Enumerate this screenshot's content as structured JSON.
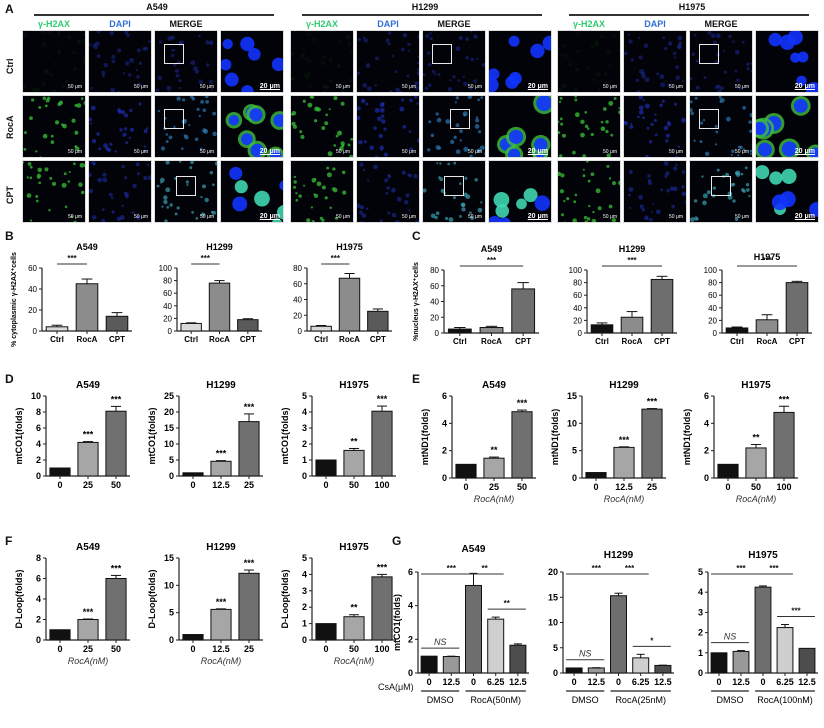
{
  "panel_letters": {
    "A": "A",
    "B": "B",
    "C": "C",
    "D": "D",
    "E": "E",
    "F": "F",
    "G": "G"
  },
  "panelA": {
    "cell_lines": [
      "A549",
      "H1299",
      "H1975"
    ],
    "channels": [
      "γ-H2AX",
      "DAPI",
      "MERGE"
    ],
    "channel_colors": [
      "#2ecc71",
      "#2f6fd6",
      "#111111"
    ],
    "rows": [
      "Ctrl",
      "RocA",
      "CPT"
    ],
    "scale_small": "50 μm",
    "scale_big": "20 μm"
  },
  "chart_data": [
    {
      "id": "B-A549",
      "type": "bar",
      "title": "A549",
      "ylabel": "% cytoplasmic γ-H2AX⁺cells",
      "categories": [
        "Ctrl",
        "RocA",
        "CPT"
      ],
      "values": [
        4,
        45,
        14
      ],
      "errors": [
        1.5,
        4.5,
        3.5
      ],
      "ylim": [
        0,
        60
      ],
      "yticks": [
        0,
        20,
        40,
        60
      ],
      "colors": [
        "#d9d9d9",
        "#8c8c8c",
        "#5a5a5a"
      ],
      "sig": [
        {
          "from": 0,
          "to": 1,
          "label": "***"
        }
      ]
    },
    {
      "id": "B-H1299",
      "type": "bar",
      "title": "H1299",
      "ylabel": "",
      "categories": [
        "Ctrl",
        "RocA",
        "CPT"
      ],
      "values": [
        12,
        76,
        18
      ],
      "errors": [
        1,
        4,
        1.5
      ],
      "ylim": [
        0,
        100
      ],
      "yticks": [
        0,
        20,
        40,
        60,
        80,
        100
      ],
      "colors": [
        "#d9d9d9",
        "#8c8c8c",
        "#5a5a5a"
      ],
      "sig": [
        {
          "from": 0,
          "to": 1,
          "label": "***"
        }
      ]
    },
    {
      "id": "B-H1975",
      "type": "bar",
      "title": "H1975",
      "ylabel": "",
      "categories": [
        "Ctrl",
        "RocA",
        "CPT"
      ],
      "values": [
        6,
        67,
        25
      ],
      "errors": [
        1,
        6,
        3
      ],
      "ylim": [
        0,
        80
      ],
      "yticks": [
        0,
        20,
        40,
        60,
        80
      ],
      "colors": [
        "#d9d9d9",
        "#8c8c8c",
        "#5a5a5a"
      ],
      "sig": [
        {
          "from": 0,
          "to": 1,
          "label": "***"
        }
      ]
    },
    {
      "id": "C-A549",
      "type": "bar",
      "title": "A549",
      "ylabel": "%nucleus γ-H2AX⁺cells",
      "categories": [
        "Ctrl",
        "RocA",
        "CPT"
      ],
      "values": [
        5,
        7,
        56
      ],
      "errors": [
        2,
        1.5,
        8
      ],
      "ylim": [
        0,
        80
      ],
      "yticks": [
        0,
        20,
        40,
        60,
        80
      ],
      "colors": [
        "#111111",
        "#8c8c8c",
        "#6e6e6e"
      ],
      "sig": [
        {
          "from": 0,
          "to": 2,
          "label": "***"
        }
      ]
    },
    {
      "id": "C-H1299",
      "type": "bar",
      "title": "H1299",
      "ylabel": "",
      "categories": [
        "Ctrl",
        "RocA",
        "CPT"
      ],
      "values": [
        13,
        25,
        85
      ],
      "errors": [
        3,
        9,
        5
      ],
      "ylim": [
        0,
        100
      ],
      "yticks": [
        0,
        20,
        40,
        60,
        80,
        100
      ],
      "colors": [
        "#111111",
        "#8c8c8c",
        "#6e6e6e"
      ],
      "sig": [
        {
          "from": 0,
          "to": 2,
          "label": "***"
        }
      ]
    },
    {
      "id": "C-H1975",
      "type": "bar",
      "title": "H1975",
      "ylabel": "",
      "categories": [
        "Ctrl",
        "RocA",
        "CPT"
      ],
      "values": [
        8,
        21,
        80
      ],
      "errors": [
        1.5,
        8,
        2
      ],
      "ylim": [
        0,
        100
      ],
      "yticks": [
        0,
        20,
        40,
        60,
        80,
        100
      ],
      "colors": [
        "#111111",
        "#8c8c8c",
        "#6e6e6e"
      ],
      "sig": [
        {
          "from": 0,
          "to": 2,
          "label": "***"
        }
      ]
    },
    {
      "id": "D-A549",
      "type": "bar",
      "title": "A549",
      "ylabel": "mtCO1(folds)",
      "xlabel": "RocA(nM)",
      "categories": [
        "0",
        "25",
        "50"
      ],
      "values": [
        1,
        4.2,
        8.1
      ],
      "errors": [
        0,
        0.1,
        0.6
      ],
      "ylim": [
        0,
        10
      ],
      "yticks": [
        0,
        2,
        4,
        6,
        8,
        10
      ],
      "colors": [
        "#111111",
        "#a6a6a6",
        "#707070"
      ],
      "stars": [
        "",
        "***",
        "***"
      ]
    },
    {
      "id": "D-H1299",
      "type": "bar",
      "title": "H1299",
      "ylabel": "mtCO1(folds)",
      "xlabel": "RocA(nM)",
      "categories": [
        "0",
        "12.5",
        "25"
      ],
      "values": [
        1,
        4.6,
        17
      ],
      "errors": [
        0,
        0.2,
        2.4
      ],
      "ylim": [
        0,
        25
      ],
      "yticks": [
        0,
        5,
        10,
        15,
        20,
        25
      ],
      "colors": [
        "#111111",
        "#a6a6a6",
        "#707070"
      ],
      "stars": [
        "",
        "***",
        "***"
      ]
    },
    {
      "id": "D-H1975",
      "type": "bar",
      "title": "H1975",
      "ylabel": "mtCO1(folds)",
      "xlabel": "RocA(nM)",
      "categories": [
        "0",
        "50",
        "100"
      ],
      "values": [
        1,
        1.6,
        4.05
      ],
      "errors": [
        0,
        0.12,
        0.32
      ],
      "ylim": [
        0,
        5
      ],
      "yticks": [
        0,
        1,
        2,
        3,
        4,
        5
      ],
      "colors": [
        "#111111",
        "#a6a6a6",
        "#707070"
      ],
      "stars": [
        "",
        "**",
        "***"
      ]
    },
    {
      "id": "E-A549",
      "type": "bar",
      "title": "A549",
      "ylabel": "mtND1(folds)",
      "xlabel": "RocA(nM)",
      "categories": [
        "0",
        "25",
        "50"
      ],
      "values": [
        1,
        1.45,
        4.85
      ],
      "errors": [
        0,
        0.08,
        0.12
      ],
      "ylim": [
        0,
        6
      ],
      "yticks": [
        0,
        2,
        4,
        6
      ],
      "colors": [
        "#111111",
        "#a6a6a6",
        "#707070"
      ],
      "stars": [
        "",
        "**",
        "***"
      ]
    },
    {
      "id": "E-H1299",
      "type": "bar",
      "title": "H1299",
      "ylabel": "mtND1(folds)",
      "xlabel": "RocA(nM)",
      "categories": [
        "0",
        "12.5",
        "25"
      ],
      "values": [
        1,
        5.6,
        12.6
      ],
      "errors": [
        0,
        0.1,
        0.1
      ],
      "ylim": [
        0,
        15
      ],
      "yticks": [
        0,
        5,
        10,
        15
      ],
      "colors": [
        "#111111",
        "#a6a6a6",
        "#707070"
      ],
      "stars": [
        "",
        "***",
        "***"
      ]
    },
    {
      "id": "E-H1975",
      "type": "bar",
      "title": "H1975",
      "ylabel": "mtND1(folds)",
      "xlabel": "RocA(nM)",
      "categories": [
        "0",
        "50",
        "100"
      ],
      "values": [
        1,
        2.2,
        4.8
      ],
      "errors": [
        0,
        0.25,
        0.45
      ],
      "ylim": [
        0,
        6
      ],
      "yticks": [
        0,
        2,
        4,
        6
      ],
      "colors": [
        "#111111",
        "#a6a6a6",
        "#707070"
      ],
      "stars": [
        "",
        "**",
        "***"
      ]
    },
    {
      "id": "F-A549",
      "type": "bar",
      "title": "A549",
      "ylabel": "D-Loop(folds)",
      "xlabel": "RocA(nM)",
      "categories": [
        "0",
        "25",
        "50"
      ],
      "values": [
        1,
        2,
        6
      ],
      "errors": [
        0,
        0.05,
        0.3
      ],
      "ylim": [
        0,
        8
      ],
      "yticks": [
        0,
        2,
        4,
        6,
        8
      ],
      "colors": [
        "#111111",
        "#a6a6a6",
        "#707070"
      ],
      "stars": [
        "",
        "***",
        "***"
      ]
    },
    {
      "id": "F-H1299",
      "type": "bar",
      "title": "H1299",
      "ylabel": "D-Loop(folds)",
      "xlabel": "RocA(nM)",
      "categories": [
        "0",
        "12.5",
        "25"
      ],
      "values": [
        1,
        5.6,
        12.2
      ],
      "errors": [
        0,
        0.1,
        0.6
      ],
      "ylim": [
        0,
        15
      ],
      "yticks": [
        0,
        5,
        10,
        15
      ],
      "colors": [
        "#111111",
        "#a6a6a6",
        "#707070"
      ],
      "stars": [
        "",
        "***",
        "***"
      ]
    },
    {
      "id": "F-H1975",
      "type": "bar",
      "title": "H1975",
      "ylabel": "D-Loop(folds)",
      "xlabel": "RocA(nM)",
      "categories": [
        "0",
        "50",
        "100"
      ],
      "values": [
        1,
        1.42,
        3.85
      ],
      "errors": [
        0,
        0.12,
        0.15
      ],
      "ylim": [
        0,
        5
      ],
      "yticks": [
        0,
        1,
        2,
        3,
        4,
        5
      ],
      "colors": [
        "#111111",
        "#a6a6a6",
        "#707070"
      ],
      "stars": [
        "",
        "**",
        "***"
      ]
    },
    {
      "id": "G-A549",
      "type": "bar",
      "title": "A549",
      "ylabel": "mtCO1(folds)",
      "categories": [
        "0",
        "12.5",
        "0",
        "6.25",
        "12.5"
      ],
      "groups": [
        {
          "label": "DMSO",
          "span": [
            0,
            1
          ]
        },
        {
          "label": "RocA(50nM)",
          "span": [
            2,
            4
          ]
        }
      ],
      "values": [
        1,
        0.98,
        5.2,
        3.2,
        1.65
      ],
      "errors": [
        0,
        0.02,
        0.72,
        0.12,
        0.08
      ],
      "ylim": [
        0,
        6
      ],
      "yticks": [
        0,
        2,
        4,
        6
      ],
      "colors": [
        "#111111",
        "#999999",
        "#6e6e6e",
        "#cfcfcf",
        "#4d4d4d"
      ],
      "sig": [
        {
          "from": 0,
          "to": 1,
          "label": "NS",
          "italic": true
        },
        {
          "from": 0,
          "to": 2,
          "label": "***"
        },
        {
          "from": 2,
          "to": 3,
          "label": "**"
        },
        {
          "from": 3,
          "to": 4,
          "label": "**"
        }
      ]
    },
    {
      "id": "G-H1299",
      "type": "bar",
      "title": "H1299",
      "ylabel": "",
      "categories": [
        "0",
        "12.5",
        "0",
        "6.25",
        "12.5"
      ],
      "groups": [
        {
          "label": "DMSO",
          "span": [
            0,
            1
          ]
        },
        {
          "label": "RocA(25nM)",
          "span": [
            2,
            4
          ]
        }
      ],
      "values": [
        1,
        1,
        15.3,
        3,
        1.5
      ],
      "errors": [
        0,
        0.05,
        0.5,
        0.7,
        0.05
      ],
      "ylim": [
        0,
        20
      ],
      "yticks": [
        0,
        5,
        10,
        15,
        20
      ],
      "colors": [
        "#111111",
        "#999999",
        "#6e6e6e",
        "#cfcfcf",
        "#4d4d4d"
      ],
      "sig": [
        {
          "from": 0,
          "to": 1,
          "label": "NS",
          "italic": true
        },
        {
          "from": 0,
          "to": 2,
          "label": "***"
        },
        {
          "from": 2,
          "to": 3,
          "label": "***"
        },
        {
          "from": 3,
          "to": 4,
          "label": "*"
        }
      ]
    },
    {
      "id": "G-H1975",
      "type": "bar",
      "title": "H1975",
      "ylabel": "",
      "categories": [
        "0",
        "12.5",
        "0",
        "6.25",
        "12.5"
      ],
      "groups": [
        {
          "label": "DMSO",
          "span": [
            0,
            1
          ]
        },
        {
          "label": "RocA(100nM)",
          "span": [
            2,
            4
          ]
        }
      ],
      "values": [
        1,
        1.07,
        4.25,
        2.25,
        1.22
      ],
      "errors": [
        0,
        0.04,
        0.06,
        0.15,
        0
      ],
      "ylim": [
        0,
        5
      ],
      "yticks": [
        0,
        1,
        2,
        3,
        4,
        5
      ],
      "colors": [
        "#111111",
        "#999999",
        "#6e6e6e",
        "#cfcfcf",
        "#4d4d4d"
      ],
      "sig": [
        {
          "from": 0,
          "to": 1,
          "label": "NS",
          "italic": true
        },
        {
          "from": 0,
          "to": 2,
          "label": "***"
        },
        {
          "from": 2,
          "to": 3,
          "label": "***"
        },
        {
          "from": 3,
          "to": 4,
          "label": "***"
        }
      ]
    }
  ],
  "panelG": {
    "csa_label": "CsA(μM)"
  }
}
